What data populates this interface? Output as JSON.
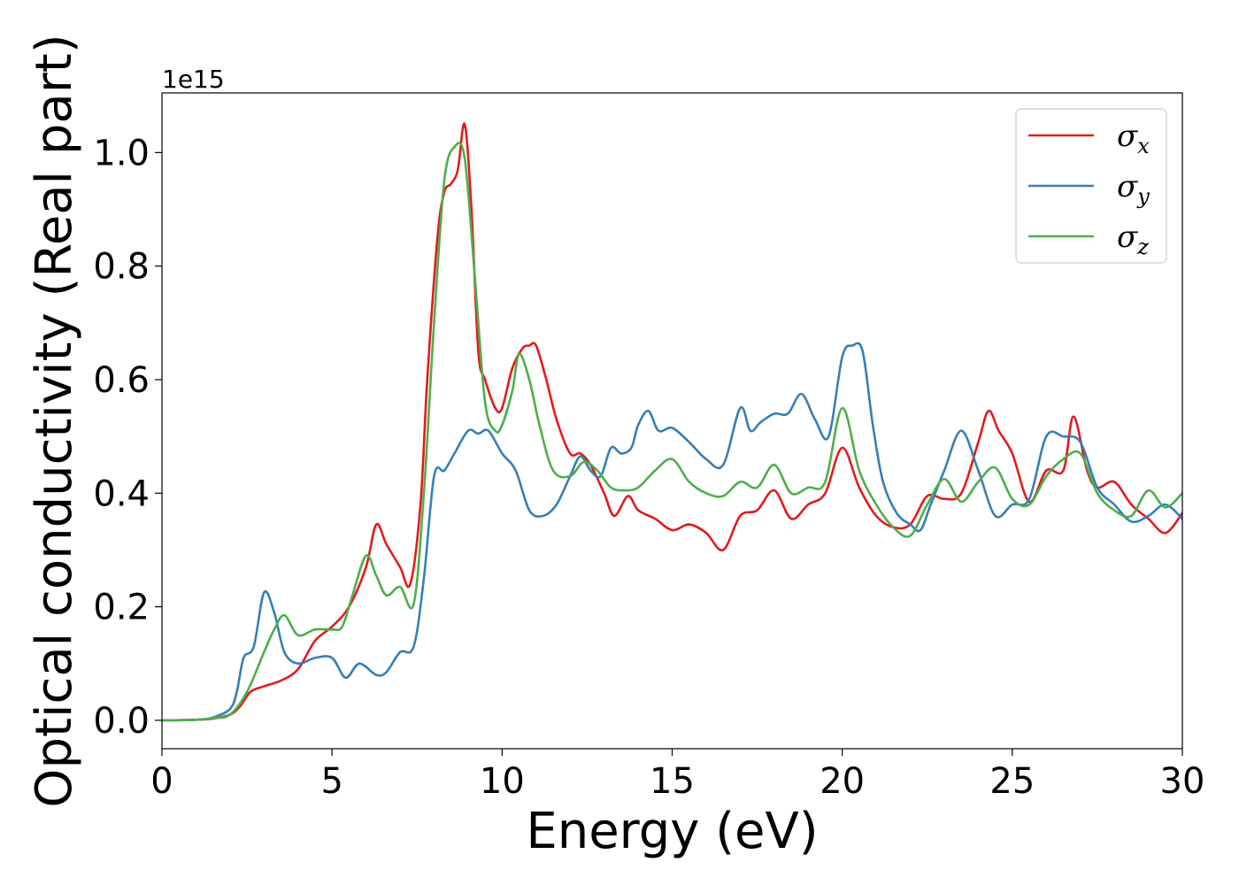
{
  "chart_data": {
    "type": "line",
    "xlabel": "Energy (eV)",
    "ylabel": "Optical conductivity (Real part)",
    "y_offset_label": "1e15",
    "xlim": [
      0,
      30
    ],
    "ylim": [
      -0.05,
      1.105
    ],
    "x_ticks": [
      0,
      5,
      10,
      15,
      20,
      25,
      30
    ],
    "x_tick_labels": [
      "0",
      "5",
      "10",
      "15",
      "20",
      "25",
      "30"
    ],
    "y_ticks": [
      0.0,
      0.2,
      0.4,
      0.6,
      0.8,
      1.0
    ],
    "y_tick_labels": [
      "0.0",
      "0.2",
      "0.4",
      "0.6",
      "0.8",
      "1.0"
    ],
    "grid": false,
    "legend_position": "top-right",
    "series": [
      {
        "name": "σx",
        "name_base": "σ",
        "name_sub": "x",
        "color": "#e41a1c",
        "x": [
          0,
          1,
          1.5,
          2,
          2.3,
          2.6,
          3,
          3.5,
          4,
          4.5,
          5,
          5.5,
          6,
          6.3,
          6.6,
          7,
          7.3,
          7.6,
          7.8,
          8.1,
          8.3,
          8.5,
          8.7,
          8.9,
          9.1,
          9.3,
          9.5,
          9.8,
          10,
          10.3,
          10.6,
          10.8,
          11,
          11.3,
          11.6,
          12,
          12.3,
          12.6,
          13,
          13.3,
          13.7,
          14,
          14.5,
          15,
          15.5,
          16,
          16.5,
          17,
          17.5,
          18,
          18.5,
          19,
          19.5,
          20,
          20.5,
          21,
          21.5,
          22,
          22.5,
          23,
          23.5,
          24,
          24.3,
          24.6,
          25,
          25.5,
          26,
          26.5,
          26.8,
          27.2,
          27.5,
          28,
          28.5,
          29,
          29.5,
          30
        ],
        "y": [
          0,
          0.001,
          0.003,
          0.01,
          0.025,
          0.05,
          0.06,
          0.07,
          0.09,
          0.14,
          0.165,
          0.2,
          0.27,
          0.345,
          0.31,
          0.27,
          0.24,
          0.38,
          0.6,
          0.85,
          0.93,
          0.945,
          0.97,
          1.05,
          0.9,
          0.65,
          0.6,
          0.55,
          0.55,
          0.62,
          0.655,
          0.66,
          0.66,
          0.6,
          0.53,
          0.47,
          0.47,
          0.45,
          0.4,
          0.36,
          0.395,
          0.37,
          0.355,
          0.335,
          0.345,
          0.33,
          0.3,
          0.36,
          0.37,
          0.405,
          0.355,
          0.38,
          0.4,
          0.48,
          0.41,
          0.36,
          0.34,
          0.345,
          0.395,
          0.39,
          0.4,
          0.49,
          0.545,
          0.51,
          0.47,
          0.385,
          0.44,
          0.44,
          0.535,
          0.44,
          0.41,
          0.42,
          0.38,
          0.355,
          0.33,
          0.365
        ]
      },
      {
        "name": "σy",
        "name_base": "σ",
        "name_sub": "y",
        "color": "#377eb8",
        "x": [
          0,
          1,
          1.5,
          2,
          2.2,
          2.4,
          2.7,
          3,
          3.3,
          3.6,
          4,
          4.5,
          5,
          5.4,
          5.8,
          6.3,
          6.6,
          7,
          7.4,
          7.7,
          8,
          8.3,
          8.6,
          9,
          9.3,
          9.6,
          10,
          10.4,
          10.8,
          11.2,
          11.6,
          12,
          12.3,
          12.6,
          12.9,
          13.2,
          13.5,
          13.8,
          14,
          14.3,
          14.6,
          15,
          15.5,
          16,
          16.5,
          17,
          17.3,
          17.6,
          18,
          18.4,
          18.8,
          19.2,
          19.6,
          20,
          20.3,
          20.6,
          20.9,
          21.2,
          21.6,
          22,
          22.3,
          22.6,
          23,
          23.5,
          24,
          24.5,
          25,
          25.5,
          26,
          26.5,
          27,
          27.5,
          28,
          28.5,
          29,
          29.5,
          30
        ],
        "y": [
          0,
          0.001,
          0.005,
          0.02,
          0.05,
          0.11,
          0.13,
          0.225,
          0.19,
          0.12,
          0.1,
          0.11,
          0.11,
          0.075,
          0.1,
          0.08,
          0.085,
          0.12,
          0.13,
          0.25,
          0.43,
          0.44,
          0.47,
          0.51,
          0.505,
          0.51,
          0.47,
          0.44,
          0.37,
          0.36,
          0.38,
          0.43,
          0.465,
          0.44,
          0.43,
          0.48,
          0.47,
          0.48,
          0.52,
          0.545,
          0.51,
          0.515,
          0.49,
          0.46,
          0.45,
          0.55,
          0.51,
          0.525,
          0.54,
          0.54,
          0.575,
          0.53,
          0.5,
          0.64,
          0.66,
          0.65,
          0.52,
          0.42,
          0.365,
          0.345,
          0.335,
          0.38,
          0.44,
          0.51,
          0.44,
          0.36,
          0.38,
          0.39,
          0.5,
          0.5,
          0.49,
          0.41,
          0.38,
          0.35,
          0.36,
          0.38,
          0.355
        ]
      },
      {
        "name": "σz",
        "name_base": "σ",
        "name_sub": "z",
        "color": "#4daf4a",
        "x": [
          0,
          1,
          1.5,
          2,
          2.5,
          3,
          3.3,
          3.6,
          4,
          4.5,
          5,
          5.3,
          5.6,
          6,
          6.3,
          6.6,
          7,
          7.4,
          7.7,
          8,
          8.3,
          8.6,
          8.9,
          9.2,
          9.5,
          9.8,
          10,
          10.3,
          10.5,
          10.8,
          11.1,
          11.5,
          12,
          12.4,
          12.8,
          13.2,
          13.6,
          14,
          14.5,
          15,
          15.5,
          16,
          16.5,
          17,
          17.5,
          18,
          18.5,
          19,
          19.5,
          20,
          20.5,
          21,
          21.5,
          22,
          22.5,
          23,
          23.5,
          24,
          24.5,
          25,
          25.5,
          26,
          26.5,
          27,
          27.5,
          28,
          28.5,
          29,
          29.5,
          30
        ],
        "y": [
          0,
          0.001,
          0.004,
          0.01,
          0.05,
          0.12,
          0.16,
          0.185,
          0.15,
          0.16,
          0.16,
          0.165,
          0.22,
          0.29,
          0.255,
          0.22,
          0.235,
          0.205,
          0.4,
          0.7,
          0.95,
          1.01,
          0.99,
          0.78,
          0.56,
          0.51,
          0.52,
          0.58,
          0.645,
          0.6,
          0.52,
          0.44,
          0.43,
          0.455,
          0.44,
          0.41,
          0.405,
          0.41,
          0.44,
          0.46,
          0.42,
          0.4,
          0.395,
          0.42,
          0.41,
          0.45,
          0.4,
          0.41,
          0.42,
          0.55,
          0.44,
          0.38,
          0.34,
          0.325,
          0.38,
          0.425,
          0.385,
          0.42,
          0.445,
          0.39,
          0.38,
          0.43,
          0.46,
          0.47,
          0.4,
          0.37,
          0.36,
          0.405,
          0.375,
          0.4
        ]
      }
    ]
  }
}
